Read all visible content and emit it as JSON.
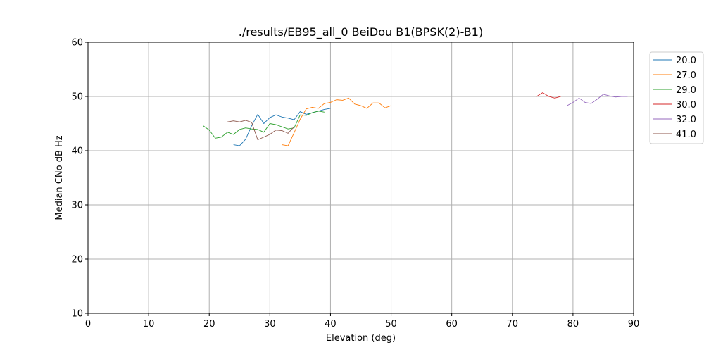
{
  "chart_data": {
    "type": "line",
    "title": "./results/EB95_all_0 BeiDou B1(BPSK(2)-B1)",
    "xlabel": "Elevation (deg)",
    "ylabel": "Median CNo dB Hz",
    "xlim": [
      0,
      90
    ],
    "ylim": [
      10,
      60
    ],
    "xticks": [
      "0",
      "10",
      "20",
      "30",
      "40",
      "50",
      "60",
      "70",
      "80",
      "90"
    ],
    "yticks": [
      "10",
      "20",
      "30",
      "40",
      "50",
      "60"
    ],
    "grid": true,
    "legend_position": "outside-right-top",
    "series": [
      {
        "name": "20.0",
        "color": "#1f77b4",
        "x": [
          24,
          25,
          26,
          27,
          28,
          29,
          30,
          31,
          32,
          33,
          34,
          35,
          36,
          37,
          38,
          39,
          40
        ],
        "y": [
          41.1,
          40.9,
          42.1,
          44.6,
          46.7,
          45.0,
          46.1,
          46.6,
          46.2,
          46.0,
          45.7,
          47.2,
          46.7,
          47.0,
          47.3,
          47.6,
          47.8
        ]
      },
      {
        "name": "27.0",
        "color": "#ff7f0e",
        "x": [
          32,
          33,
          34,
          35,
          36,
          37,
          38,
          39,
          40,
          41,
          42,
          43,
          44,
          45,
          46,
          47,
          48,
          49,
          50
        ],
        "y": [
          41.1,
          40.9,
          43.3,
          45.8,
          47.7,
          48.0,
          47.8,
          48.7,
          48.9,
          49.4,
          49.3,
          49.7,
          48.6,
          48.3,
          47.8,
          48.8,
          48.8,
          47.9,
          48.3
        ]
      },
      {
        "name": "29.0",
        "color": "#2ca02c",
        "x": [
          19,
          20,
          21,
          22,
          23,
          24,
          25,
          26,
          27,
          28,
          29,
          30,
          31,
          32,
          33,
          34,
          35,
          36,
          37,
          38,
          39
        ],
        "y": [
          44.6,
          43.8,
          42.3,
          42.5,
          43.4,
          43.0,
          43.9,
          44.2,
          44.0,
          43.9,
          43.4,
          45.0,
          44.8,
          44.4,
          44.0,
          44.2,
          46.6,
          46.5,
          47.0,
          47.3,
          47.1
        ]
      },
      {
        "name": "30.0",
        "color": "#d62728",
        "x": [
          74,
          75,
          76,
          77,
          78
        ],
        "y": [
          50.0,
          50.7,
          50.0,
          49.7,
          50.0
        ]
      },
      {
        "name": "32.0",
        "color": "#9467bd",
        "x": [
          79,
          80,
          81,
          82,
          83,
          84,
          85,
          86,
          87,
          88,
          89
        ],
        "y": [
          48.3,
          48.9,
          49.7,
          48.9,
          48.7,
          49.5,
          50.4,
          50.1,
          49.9,
          50.0,
          50.0
        ]
      },
      {
        "name": "41.0",
        "color": "#8c564b",
        "x": [
          23,
          24,
          25,
          26,
          27,
          28,
          29,
          30,
          31,
          32,
          33,
          34
        ],
        "y": [
          45.3,
          45.5,
          45.3,
          45.6,
          45.2,
          42.0,
          42.5,
          43.0,
          43.8,
          43.7,
          43.2,
          44.4
        ]
      }
    ]
  }
}
